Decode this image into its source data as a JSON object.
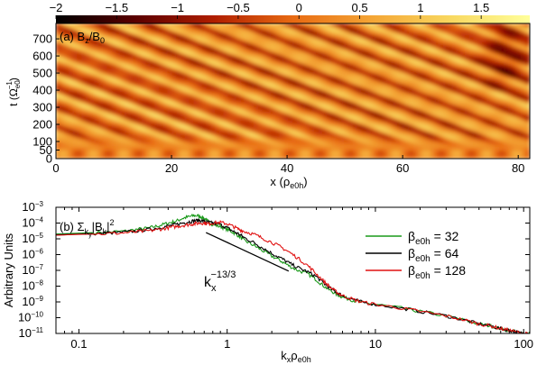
{
  "chart_data": [
    {
      "type": "heatmap",
      "panel_label": "(a)",
      "title_main": "B",
      "title_sub": "z",
      "title_sep": "/B",
      "title_sub2": "0",
      "colorbar": {
        "ticks": [
          "−2",
          "−1.5",
          "−1",
          "−0.5",
          "0",
          "0.5",
          "1",
          "1.5"
        ],
        "tick_values": [
          -2,
          -1.5,
          -1,
          -0.5,
          0,
          0.5,
          1,
          1.5
        ],
        "range": [
          -2,
          1.9
        ],
        "colors": [
          "#000000",
          "#5a0000",
          "#b01e00",
          "#e86a12",
          "#f4a535",
          "#f8d860",
          "#ffff9a"
        ]
      },
      "xlabel_main": "x (ρ",
      "xlabel_sub": "e0h",
      "xlabel_end": ")",
      "ylabel_main": "t (Ω",
      "ylabel_sup": "−1",
      "ylabel_sub": "e0",
      "ylabel_end": ")",
      "xlim": [
        0,
        82
      ],
      "ylim": [
        0,
        790
      ],
      "xticks": [
        0,
        20,
        40,
        60,
        80
      ],
      "yticks": [
        0,
        50,
        100,
        200,
        300,
        400,
        500,
        600,
        700
      ],
      "xtick_labels": [
        "0",
        "20",
        "40",
        "60",
        "80"
      ],
      "ytick_labels": [
        "0",
        "50",
        "100",
        "200",
        "300",
        "400",
        "500",
        "600",
        "700"
      ]
    },
    {
      "type": "line",
      "panel_label": "(b)",
      "title_main": "Σ",
      "title_sub": "k",
      "title_subsub": "y",
      "title_end": "|B",
      "title_sub2": "k",
      "title_end2": "|",
      "title_sup": "2",
      "xlabel_main": "k",
      "xlabel_sub1": "x",
      "xlabel_mid": "ρ",
      "xlabel_sub2": "e0h",
      "ylabel": "Arbitrary Units",
      "x_scale": "log",
      "y_scale": "log",
      "xlim": [
        0.07,
        110
      ],
      "ylim": [
        1e-11,
        0.001
      ],
      "xticks": [
        0.1,
        1,
        10,
        100
      ],
      "xtick_labels": [
        "0.1",
        "1",
        "10",
        "100"
      ],
      "yticks": [
        1e-11,
        1e-10,
        1e-09,
        1e-08,
        1e-07,
        1e-06,
        1e-05,
        0.0001,
        0.001
      ],
      "ytick_bases": [
        "10",
        "10",
        "10",
        "10",
        "10",
        "10",
        "10",
        "10",
        "10"
      ],
      "ytick_exps": [
        "−11",
        "−10",
        "−9",
        "−8",
        "−7",
        "−6",
        "−5",
        "−4",
        "−3"
      ],
      "slope_label_main": "k",
      "slope_label_sub": "x",
      "slope_label_sup": "−13/3",
      "slope_line": {
        "x": [
          0.72,
          2.6
        ],
        "y": [
          2.5e-05,
          9e-08
        ]
      },
      "legend_position": "top-right",
      "series": [
        {
          "base": "β",
          "sub": "e0h",
          "val": " = 32",
          "color": "#1a9a1a",
          "x": [
            0.07,
            0.1,
            0.15,
            0.2,
            0.25,
            0.3,
            0.35,
            0.4,
            0.45,
            0.5,
            0.55,
            0.6,
            0.65,
            0.7,
            0.75,
            0.8,
            0.9,
            1.0,
            1.1,
            1.2,
            1.3,
            1.5,
            1.7,
            2.0,
            2.3,
            2.6,
            3.0,
            3.5,
            4.0,
            4.5,
            5.0,
            5.5,
            6.0,
            7.0,
            8.0,
            10,
            15,
            20,
            30,
            40,
            50,
            60,
            70,
            80,
            90,
            100,
            110
          ],
          "y": [
            2e-05,
            2.3e-05,
            2.6e-05,
            3e-05,
            4e-05,
            5e-05,
            7e-05,
            0.0001,
            0.00013,
            0.0002,
            0.00025,
            0.0003,
            0.00028,
            0.0002,
            0.00012,
            8e-05,
            6e-05,
            4e-05,
            2.5e-05,
            1.5e-05,
            8e-06,
            4e-06,
            2e-06,
            8e-07,
            4e-07,
            2e-07,
            1e-07,
            6e-08,
            2.5e-08,
            1e-08,
            5e-09,
            3e-09,
            2e-09,
            1.3e-09,
            9e-10,
            7e-10,
            4e-10,
            2.5e-10,
            1.3e-10,
            7e-11,
            4e-11,
            3e-11,
            2e-11,
            1.6e-11,
            1.2e-11,
            1e-11,
            9e-12
          ]
        },
        {
          "base": "β",
          "sub": "e0h",
          "val": " = 64",
          "color": "#000000",
          "x": [
            0.07,
            0.1,
            0.15,
            0.2,
            0.25,
            0.3,
            0.35,
            0.4,
            0.45,
            0.5,
            0.55,
            0.6,
            0.65,
            0.7,
            0.75,
            0.8,
            0.9,
            1.0,
            1.1,
            1.2,
            1.3,
            1.5,
            1.7,
            2.0,
            2.3,
            2.6,
            3.0,
            3.5,
            4.0,
            4.5,
            5.0,
            5.5,
            6.0,
            7.0,
            8.0,
            10,
            15,
            20,
            30,
            40,
            50,
            60,
            70,
            80,
            90,
            100,
            110
          ],
          "y": [
            1.8e-05,
            2e-05,
            2.3e-05,
            2.6e-05,
            3.2e-05,
            4e-05,
            5e-05,
            6.5e-05,
            8e-05,
            0.0001,
            0.00012,
            0.00014,
            0.00015,
            0.00013,
            0.00011,
            0.0001,
            8e-05,
            5e-05,
            3e-05,
            2e-05,
            1.2e-05,
            6e-06,
            3e-06,
            1.2e-06,
            6e-07,
            3e-07,
            1.5e-07,
            8e-08,
            4e-08,
            1.5e-08,
            7e-09,
            4e-09,
            2.5e-09,
            1.5e-09,
            1e-09,
            7e-10,
            4e-10,
            2.5e-10,
            1.3e-10,
            7e-11,
            4e-11,
            3e-11,
            2e-11,
            1.6e-11,
            1.2e-11,
            1e-11,
            9e-12
          ]
        },
        {
          "base": "β",
          "sub": "e0h",
          "val": " = 128",
          "color": "#e01010",
          "x": [
            0.07,
            0.1,
            0.15,
            0.2,
            0.25,
            0.3,
            0.35,
            0.4,
            0.45,
            0.5,
            0.55,
            0.6,
            0.65,
            0.7,
            0.75,
            0.8,
            0.9,
            1.0,
            1.1,
            1.2,
            1.3,
            1.5,
            1.7,
            2.0,
            2.3,
            2.6,
            3.0,
            3.5,
            4.0,
            4.5,
            5.0,
            5.5,
            6.0,
            7.0,
            8.0,
            10,
            15,
            20,
            30,
            40,
            50,
            60,
            70,
            80,
            90,
            100,
            110
          ],
          "y": [
            1.7e-05,
            1.9e-05,
            2.1e-05,
            2.4e-05,
            2.8e-05,
            3.3e-05,
            4e-05,
            5e-05,
            6e-05,
            7e-05,
            8e-05,
            9e-05,
            0.0001,
            0.0001,
            9e-05,
            0.0001,
            0.00011,
            9e-05,
            6e-05,
            4e-05,
            3e-05,
            2e-05,
            1.2e-05,
            6e-06,
            3e-06,
            1.5e-06,
            6e-07,
            2e-07,
            6e-08,
            2e-08,
            8e-09,
            4e-09,
            2.5e-09,
            1.5e-09,
            1e-09,
            7e-10,
            4e-10,
            2.5e-10,
            1.3e-10,
            7e-11,
            4e-11,
            3e-11,
            2e-11,
            1.6e-11,
            1.2e-11,
            1e-11,
            9e-12
          ]
        }
      ]
    }
  ]
}
